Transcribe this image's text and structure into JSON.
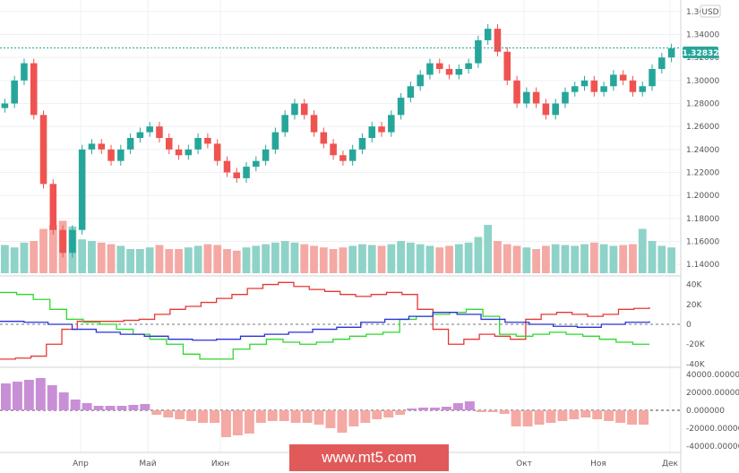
{
  "watermark": "www.mt5.com",
  "currency_badge": "USD",
  "price_badge": "1.32832",
  "colors": {
    "up": "#26a69a",
    "down": "#ef5350",
    "vol_up": "#8fd3c8",
    "vol_down": "#f4a9a4",
    "hist_pos": "#c98fd6",
    "hist_neg": "#f4a9a4",
    "cot_red": "#e53935",
    "cot_green": "#2ed82e",
    "cot_blue": "#2a32d8",
    "price_tag": "#26a69a"
  },
  "chart_data": [
    {
      "type": "candlestick",
      "x_labels": [
        "Апр",
        "Май",
        "Июн",
        "Окт",
        "Ноя",
        "Дек"
      ],
      "y_ticks": [
        "1.36000",
        "1.34000",
        "1.32000",
        "1.30000",
        "1.28000",
        "1.26000",
        "1.24000",
        "1.22000",
        "1.20000",
        "1.18000",
        "1.16000",
        "1.14000"
      ],
      "ylim": [
        1.13,
        1.37
      ],
      "last_price": 1.32832,
      "currency": "USD",
      "close": [
        1.28,
        1.3,
        1.315,
        1.27,
        1.21,
        1.17,
        1.15,
        1.17,
        1.24,
        1.245,
        1.24,
        1.23,
        1.24,
        1.25,
        1.255,
        1.26,
        1.25,
        1.24,
        1.235,
        1.24,
        1.25,
        1.245,
        1.23,
        1.22,
        1.215,
        1.225,
        1.23,
        1.24,
        1.255,
        1.27,
        1.28,
        1.27,
        1.255,
        1.245,
        1.235,
        1.23,
        1.24,
        1.25,
        1.26,
        1.255,
        1.27,
        1.285,
        1.295,
        1.305,
        1.315,
        1.31,
        1.305,
        1.31,
        1.315,
        1.335,
        1.345,
        1.325,
        1.3,
        1.28,
        1.29,
        1.28,
        1.27,
        1.28,
        1.29,
        1.295,
        1.3,
        1.29,
        1.295,
        1.305,
        1.3,
        1.29,
        1.295,
        1.31,
        1.32,
        1.328
      ]
    },
    {
      "type": "bar",
      "name": "volume",
      "values": [
        35,
        32,
        38,
        40,
        55,
        60,
        65,
        58,
        42,
        40,
        38,
        36,
        34,
        30,
        30,
        32,
        35,
        30,
        30,
        32,
        34,
        36,
        35,
        30,
        28,
        32,
        34,
        36,
        38,
        40,
        38,
        36,
        34,
        32,
        30,
        32,
        34,
        36,
        35,
        34,
        36,
        40,
        38,
        36,
        34,
        32,
        34,
        36,
        38,
        45,
        60,
        40,
        36,
        34,
        32,
        30,
        34,
        36,
        35,
        34,
        36,
        38,
        36,
        34,
        35,
        36,
        55,
        40,
        34,
        32
      ]
    },
    {
      "type": "line",
      "y_ticks": [
        "40K",
        "20K",
        "0",
        "-20K",
        "-40K"
      ],
      "ylim": [
        -45000,
        45000
      ],
      "series": [
        {
          "values": [
            -35000,
            -34000,
            -32000,
            -20000,
            -5000,
            3000,
            3000,
            3000,
            4000,
            5000,
            10000,
            15000,
            18000,
            22000,
            26000,
            30000,
            36000,
            40000,
            42000,
            38000,
            35000,
            33000,
            30000,
            28000,
            30000,
            32000,
            30000,
            15000,
            -5000,
            -20000,
            -15000,
            -10000,
            -12000,
            -15000,
            5000,
            10000,
            12000,
            10000,
            8000,
            10000,
            15000,
            16000,
            17000
          ]
        },
        {
          "values": [
            32000,
            30000,
            25000,
            15000,
            5000,
            2000,
            0,
            -5000,
            -10000,
            -15000,
            -20000,
            -30000,
            -35000,
            -35000,
            -25000,
            -20000,
            -15000,
            -18000,
            -20000,
            -18000,
            -15000,
            -12000,
            -10000,
            -8000,
            5000,
            8000,
            10000,
            12000,
            15000,
            8000,
            -10000,
            -12000,
            -10000,
            -8000,
            -10000,
            -12000,
            -15000,
            -18000,
            -20000,
            -20000
          ]
        },
        {
          "values": [
            3000,
            2000,
            0,
            -5000,
            -8000,
            -10000,
            -12000,
            -15000,
            -16000,
            -15000,
            -12000,
            -10000,
            -8000,
            -5000,
            -3000,
            2000,
            5000,
            8000,
            12000,
            10000,
            5000,
            2000,
            0,
            -2000,
            -3000,
            0,
            2000,
            3000
          ]
        }
      ]
    },
    {
      "type": "bar",
      "name": "histogram",
      "y_ticks": [
        "40000.000000",
        "20000.000000",
        "0.000000",
        "-20000.000000",
        "-40000.000000"
      ],
      "ylim": [
        -45000,
        45000
      ],
      "values": [
        30000,
        32000,
        34000,
        36000,
        28000,
        20000,
        12000,
        8000,
        5000,
        5000,
        5000,
        6000,
        7000,
        -5000,
        -8000,
        -10000,
        -12000,
        -14000,
        -14000,
        -30000,
        -28000,
        -26000,
        -14000,
        -12000,
        -12000,
        -14000,
        -14000,
        -16000,
        -20000,
        -25000,
        -18000,
        -14000,
        -10000,
        -8000,
        -5000,
        2000,
        3000,
        3000,
        4000,
        8000,
        10000,
        -2000,
        -2000,
        -4000,
        -18000,
        -18000,
        -16000,
        -14000,
        -12000,
        -10000,
        -8000,
        -10000,
        -12000,
        -14000,
        -16000,
        -16000
      ]
    }
  ]
}
